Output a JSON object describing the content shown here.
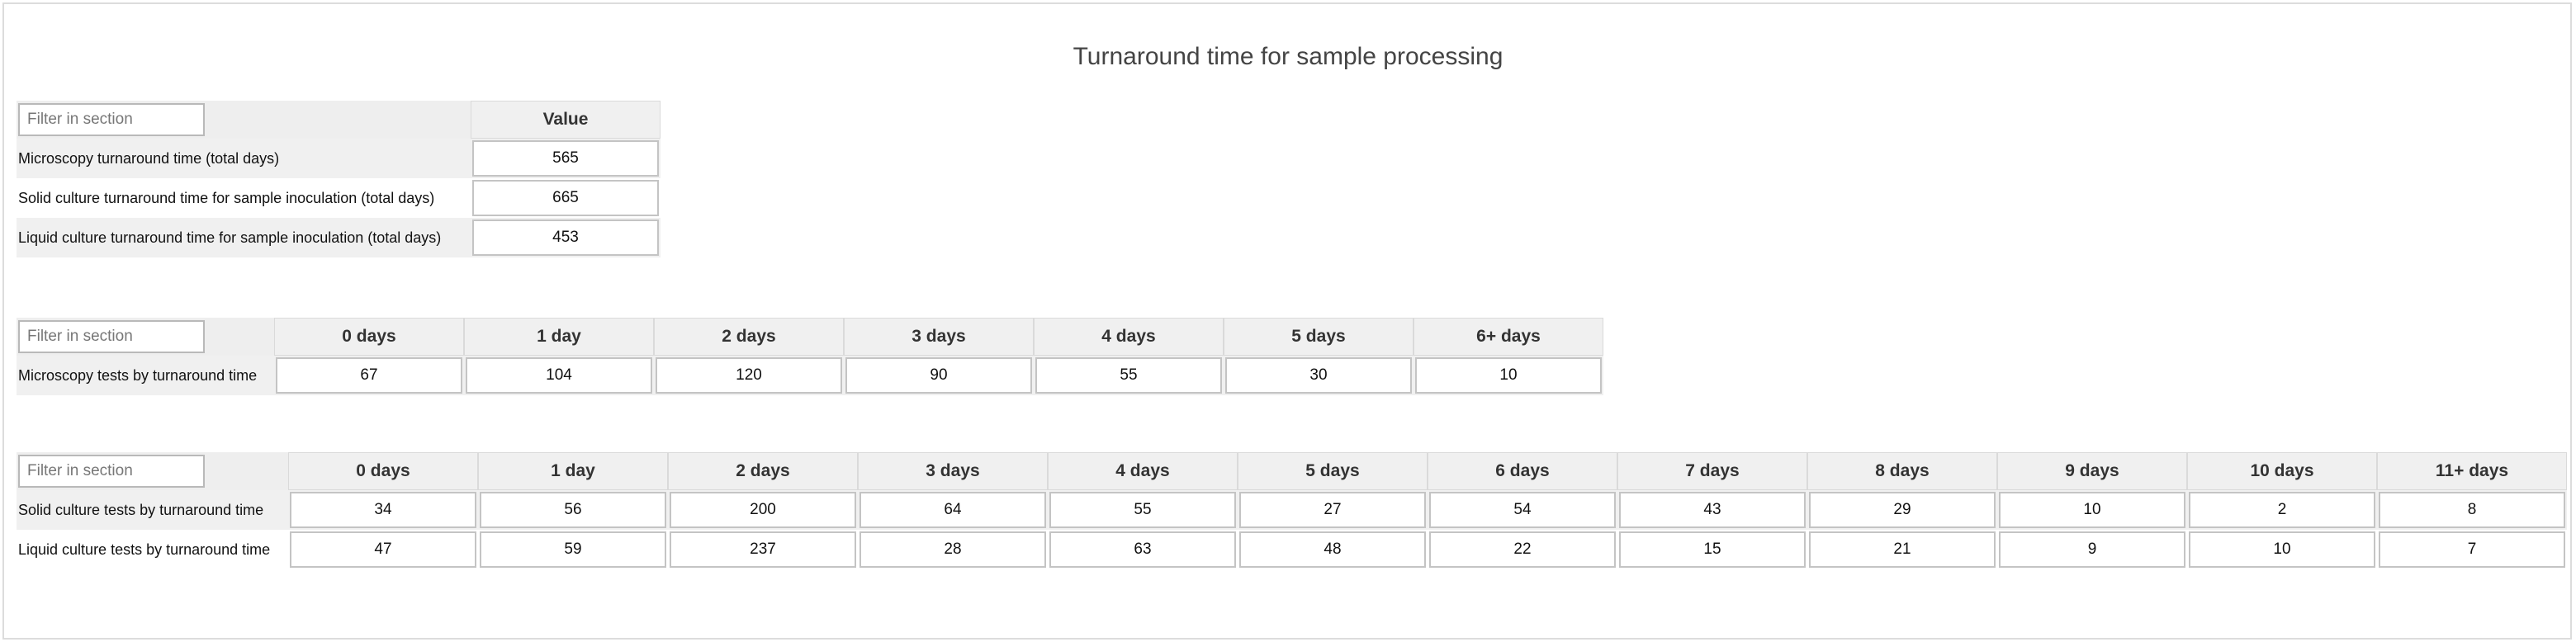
{
  "title": "Turnaround time for sample processing",
  "filter_placeholder": "Filter in section",
  "section1": {
    "columns": [
      "Value"
    ],
    "rows": [
      {
        "label": "Microscopy turnaround time (total days)",
        "values": [
          "565"
        ]
      },
      {
        "label": "Solid culture turnaround time for sample inoculation (total days)",
        "values": [
          "665"
        ]
      },
      {
        "label": "Liquid culture turnaround time for sample inoculation (total days)",
        "values": [
          "453"
        ]
      }
    ]
  },
  "section2": {
    "columns": [
      "0 days",
      "1 day",
      "2 days",
      "3 days",
      "4 days",
      "5 days",
      "6+ days"
    ],
    "rows": [
      {
        "label": "Microscopy tests by turnaround time",
        "values": [
          "67",
          "104",
          "120",
          "90",
          "55",
          "30",
          "10"
        ]
      }
    ]
  },
  "section3": {
    "columns": [
      "0 days",
      "1 day",
      "2 days",
      "3 days",
      "4 days",
      "5 days",
      "6 days",
      "7 days",
      "8 days",
      "9 days",
      "10 days",
      "11+ days"
    ],
    "rows": [
      {
        "label": "Solid culture tests by turnaround time",
        "values": [
          "34",
          "56",
          "200",
          "64",
          "55",
          "27",
          "54",
          "43",
          "29",
          "10",
          "2",
          "8"
        ]
      },
      {
        "label": "Liquid culture tests by turnaround time",
        "values": [
          "47",
          "59",
          "237",
          "28",
          "63",
          "48",
          "22",
          "15",
          "21",
          "9",
          "10",
          "7"
        ]
      }
    ]
  }
}
